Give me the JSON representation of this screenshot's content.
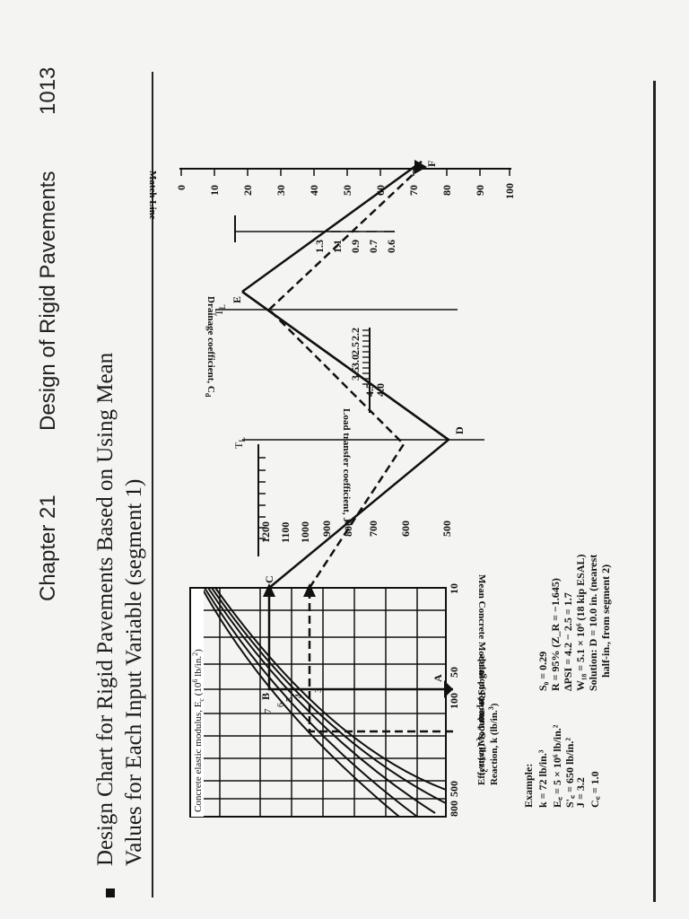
{
  "header": {
    "page_number": "1013",
    "chapter_label": "Chapter 21",
    "chapter_title": "Design of Rigid Pavements"
  },
  "figure": {
    "title_line1": "Design Chart for Rigid Pavements Based on Using Mean",
    "title_line2": "Values for Each Input Variable (segment 1)"
  },
  "grid": {
    "title": "Concrete elastic modulus, E",
    "title_sub": "c",
    "title_units": "(10",
    "title_exp": "6",
    "title_end": "lb/in.",
    "title_end_exp": "2",
    "title_close": ")",
    "xlabel_line1": "Effective Modulus of Subgrade",
    "xlabel_line2": "Reaction, k (lb/in.",
    "xlabel_exp": "3",
    "xlabel_close": ")",
    "k_ticks": [
      "800",
      "500",
      "100",
      "50",
      "10"
    ],
    "curve_labels": [
      "7",
      "6",
      "5",
      "4",
      "3"
    ],
    "point_A": "A",
    "point_B": "B"
  },
  "rupture_scale": {
    "label": "Mean Concrete Modulus of Rupture, S",
    "label_sub": "c",
    "label_units": "(lb/in.",
    "label_exp": "2",
    "label_close": ")",
    "ticks": [
      "1200",
      "1100",
      "1000",
      "900",
      "800",
      "700",
      "600",
      "500"
    ],
    "point_C": "C",
    "point_D": "D",
    "tl": "T",
    "tl_sub": "L"
  },
  "load_transfer": {
    "label": "Load transfer coefficient, J",
    "ticks": [
      "4.5",
      "4.0",
      "3.5",
      "3.0",
      "2.5",
      "2.2"
    ],
    "tl": "T",
    "tl_sub": "L",
    "point_E": "E"
  },
  "drainage": {
    "label": "Drainage coefficient, C",
    "label_sub": "d",
    "ticks": [
      "1.3",
      "1.1",
      "0.9",
      "0.7",
      "0.6"
    ]
  },
  "match_line": {
    "label": "Match Line",
    "ticks": [
      "0",
      "10",
      "20",
      "30",
      "40",
      "50",
      "60",
      "70",
      "80",
      "90",
      "100"
    ],
    "point_F": "F"
  },
  "example": {
    "heading": "Example:",
    "col1": [
      "k = 72 lb/in.³",
      "E꜀ = 5 × 10⁶ lb/in.²",
      "S'꜀ = 650 lb/in.²",
      "J = 3.2",
      "C꜀ = 1.0"
    ],
    "col2": [
      "S₀ = 0.29",
      "R = 95% (Z_R = −1.645)",
      "ΔPSI = 4.2 − 2.5 = 1.7",
      "W₁₈ = 5.1 × 10⁶ (18 kip ESAL)",
      "Solution: D = 10.0 in. (nearest",
      "half-in., from segment 2)"
    ]
  }
}
